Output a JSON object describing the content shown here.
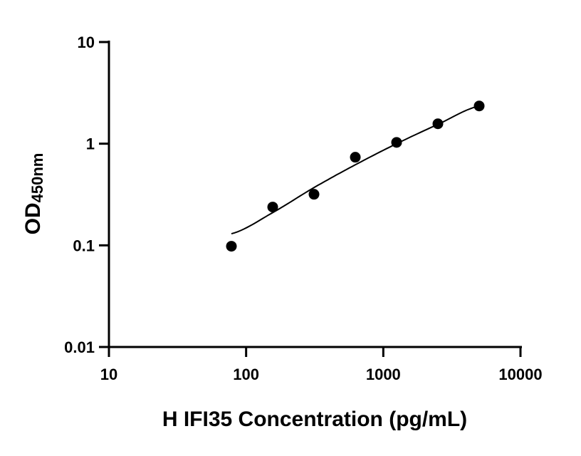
{
  "chart_data": {
    "type": "scatter",
    "title": "",
    "xlabel": "H IFI35 Concentration (pg/mL)",
    "ylabel_main": "OD",
    "ylabel_subscript": "450nm",
    "x_scale": "log",
    "y_scale": "log",
    "xlim": [
      10,
      10000
    ],
    "ylim": [
      0.01,
      10
    ],
    "x_ticks": [
      "10",
      "100",
      "1000",
      "10000"
    ],
    "x_tick_values": [
      10,
      100,
      1000,
      10000
    ],
    "y_ticks": [
      "0.01",
      "0.1",
      "1",
      "10"
    ],
    "y_tick_values": [
      0.01,
      0.1,
      1,
      10
    ],
    "grid": false,
    "legend": "none",
    "points": {
      "x": [
        78.125,
        156.25,
        312.5,
        625,
        1250,
        2500,
        5000
      ],
      "y": [
        0.098,
        0.238,
        0.318,
        0.736,
        1.03,
        1.57,
        2.35
      ]
    },
    "fit_curve": {
      "x": [
        78.125,
        156.25,
        312.5,
        625,
        1250,
        2500,
        5000
      ],
      "y": [
        0.13,
        0.21,
        0.37,
        0.62,
        1.0,
        1.55,
        2.35
      ]
    },
    "colors": {
      "points": "#000000",
      "line": "#000000",
      "axes": "#000000"
    }
  }
}
